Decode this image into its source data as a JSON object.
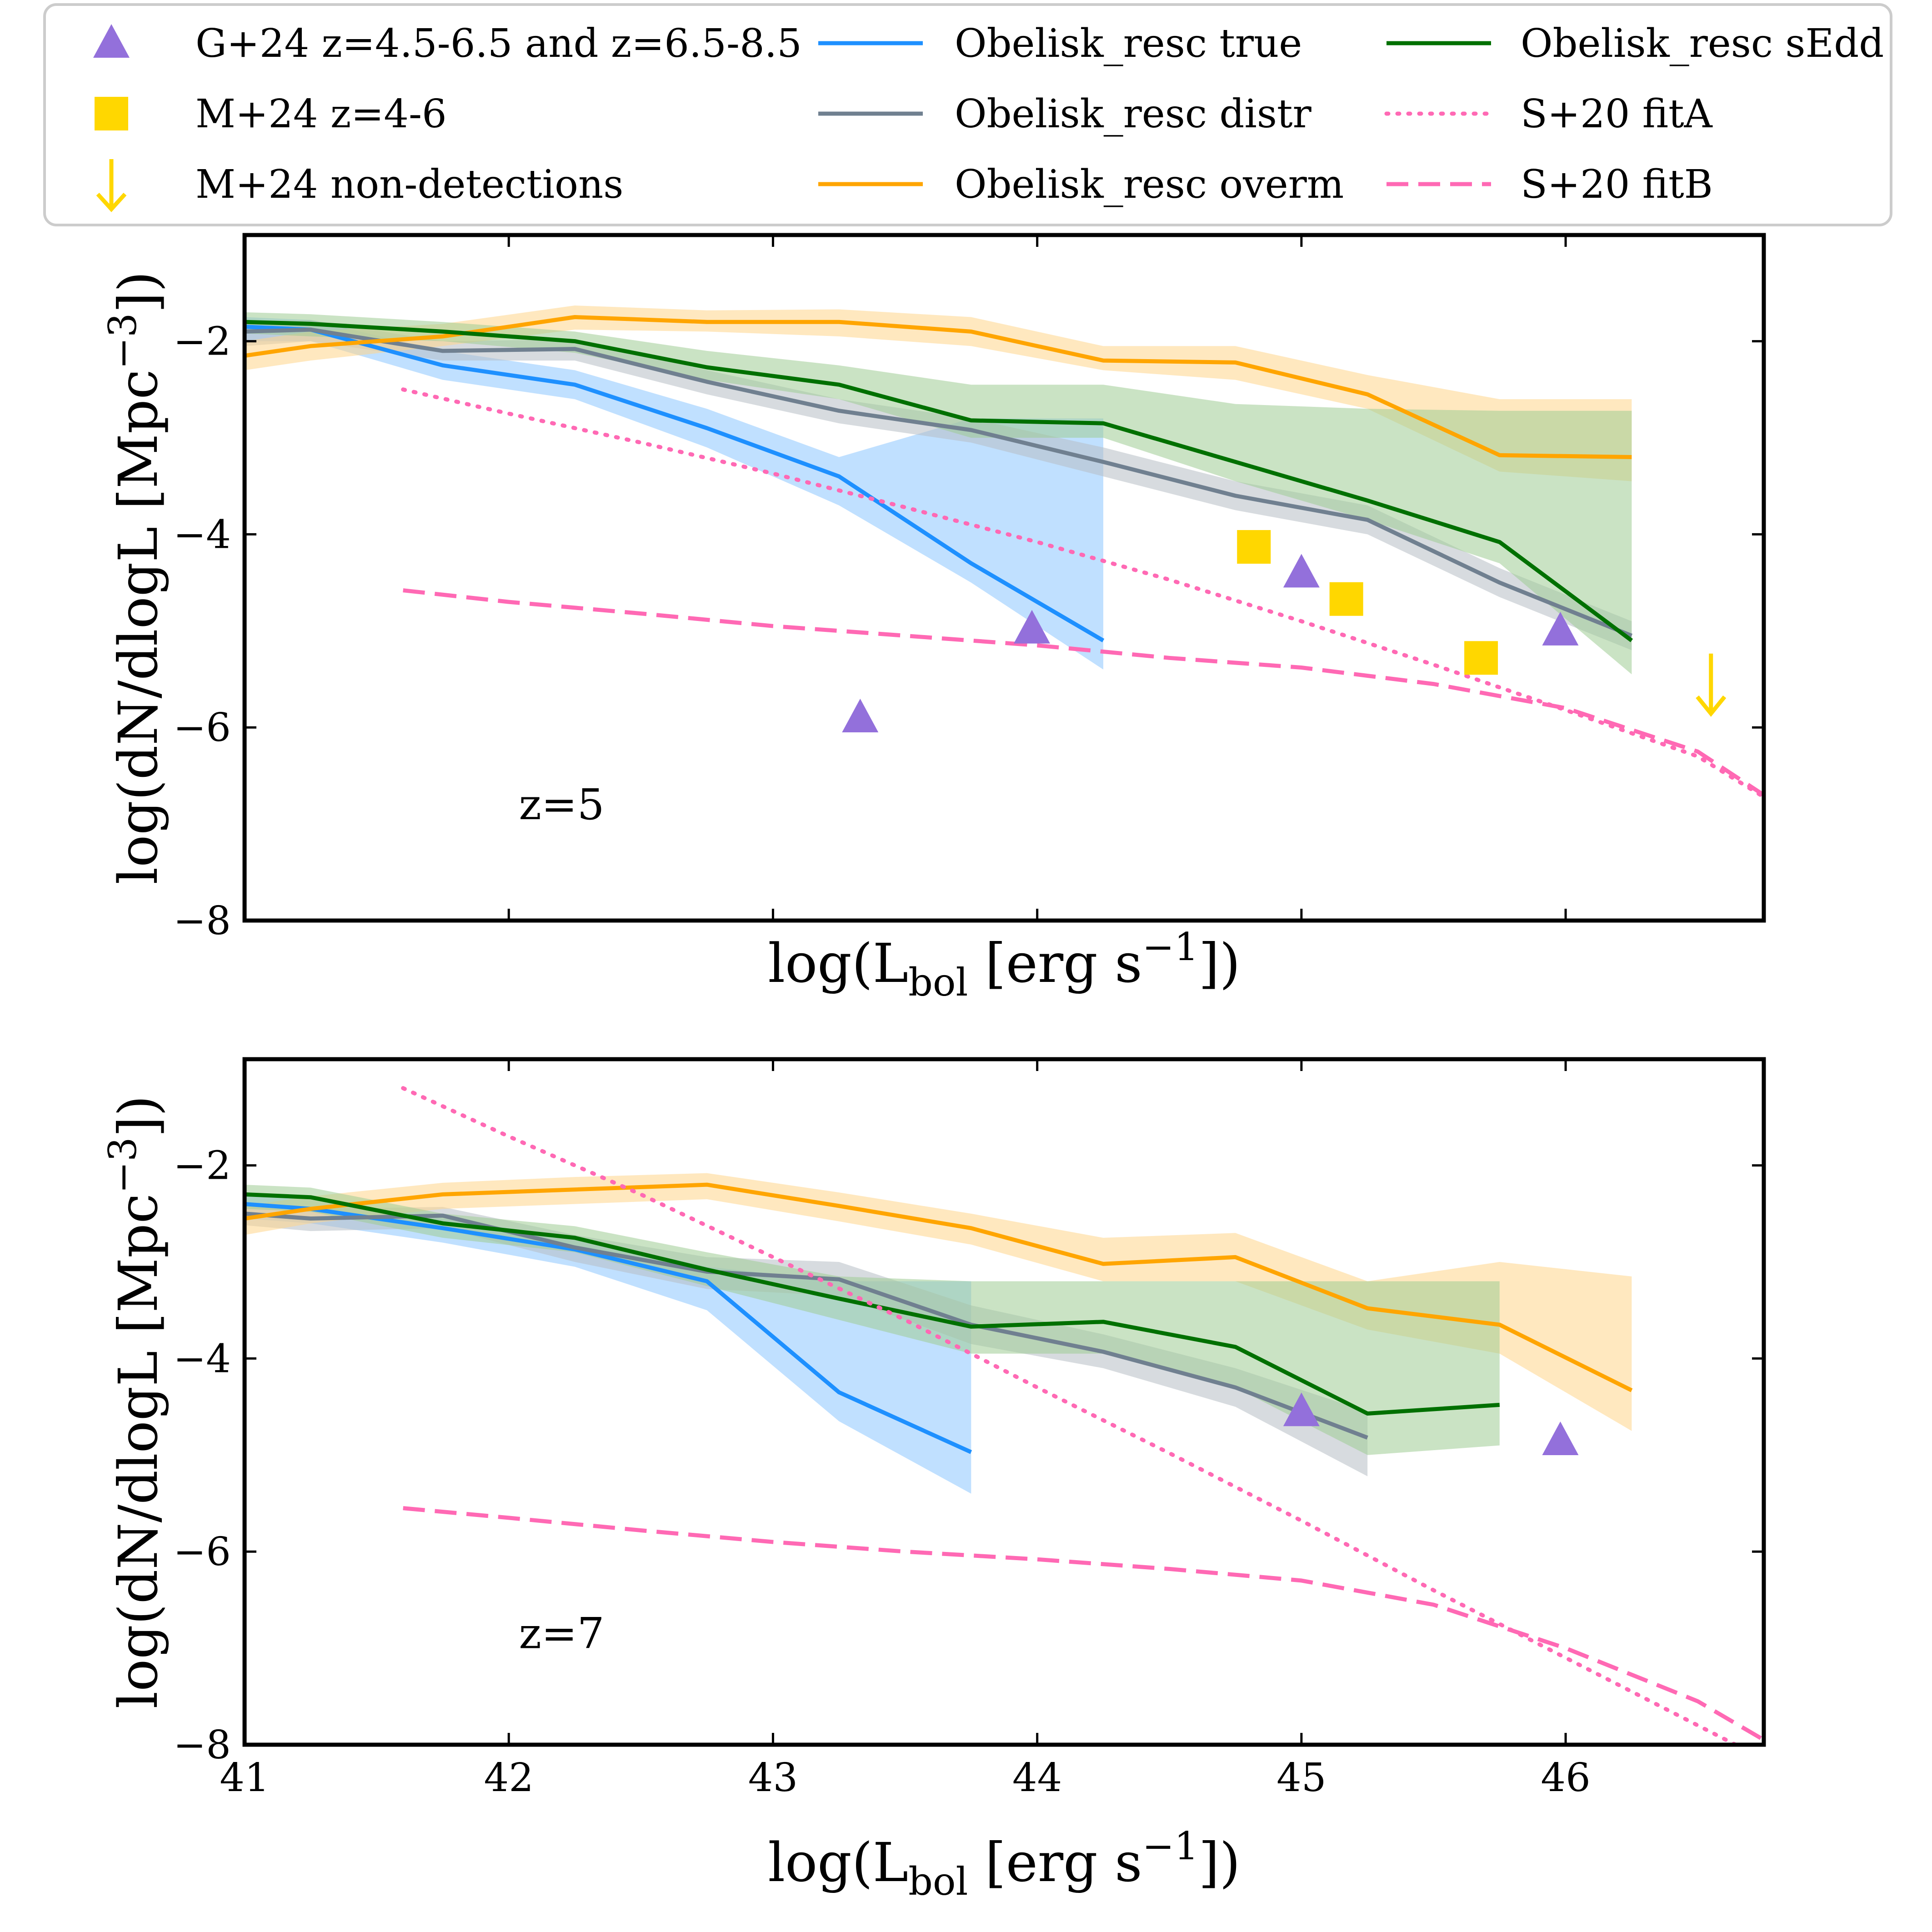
{
  "legend": {
    "entries": [
      {
        "label": "G+24 z=4.5-6.5 and z=6.5-8.5",
        "kind": "triangle",
        "color": "#9370DB"
      },
      {
        "label": "M+24 z=4-6",
        "kind": "square",
        "color": "#FFD700"
      },
      {
        "label": "M+24 non-detections",
        "kind": "arrow",
        "color": "#FFD700"
      },
      {
        "label": "Obelisk_resc true",
        "kind": "line",
        "color": "#1E90FF",
        "dash": "none"
      },
      {
        "label": "Obelisk_resc distr",
        "kind": "line",
        "color": "#708090",
        "dash": "none"
      },
      {
        "label": "Obelisk_resc overm",
        "kind": "line",
        "color": "#FFA500",
        "dash": "none"
      },
      {
        "label": "Obelisk_resc sEdd",
        "kind": "line",
        "color": "#007000",
        "dash": "none"
      },
      {
        "label": "S+20 fitA",
        "kind": "line",
        "color": "#FF69B4",
        "dash": "dotted"
      },
      {
        "label": "S+20 fitB",
        "kind": "line",
        "color": "#FF69B4",
        "dash": "dashed"
      }
    ]
  },
  "chart_data": [
    {
      "type": "line",
      "panel_label": "z=5",
      "xlabel": "log(L_bol [erg s^-1])",
      "ylabel": "log(dN/dlogL [Mpc^-3])",
      "xlim": [
        41,
        46.75
      ],
      "ylim": [
        -8,
        -0.9
      ],
      "xticks": [
        41,
        42,
        43,
        44,
        45,
        46
      ],
      "show_xtick_labels": false,
      "yticks": [
        -8,
        -6,
        -4,
        -2
      ],
      "series": [
        {
          "name": "Obelisk_resc true",
          "color": "#1E90FF",
          "band_color": "#8CC6FF",
          "x": [
            41.0,
            41.25,
            41.75,
            42.25,
            42.75,
            43.25,
            43.75,
            44.25
          ],
          "y": [
            -1.85,
            -1.88,
            -2.25,
            -2.45,
            -2.9,
            -3.4,
            -4.3,
            -5.1
          ],
          "lo": [
            -2.0,
            -2.0,
            -2.4,
            -2.6,
            -3.1,
            -3.7,
            -4.5,
            -5.4
          ],
          "hi": [
            -1.75,
            -1.78,
            -2.1,
            -2.3,
            -2.7,
            -3.2,
            -2.8,
            -2.8
          ]
        },
        {
          "name": "Obelisk_resc distr",
          "color": "#708090",
          "band_color": "#B7BEC5",
          "x": [
            41.0,
            41.25,
            41.75,
            42.25,
            42.75,
            43.25,
            43.75,
            44.25,
            44.75,
            45.25,
            45.75,
            46.25
          ],
          "y": [
            -1.9,
            -1.88,
            -2.1,
            -2.08,
            -2.42,
            -2.72,
            -2.92,
            -3.25,
            -3.6,
            -3.85,
            -4.5,
            -5.05
          ],
          "lo": [
            -2.05,
            -2.0,
            -2.2,
            -2.2,
            -2.55,
            -2.85,
            -3.05,
            -3.4,
            -3.75,
            -4.0,
            -4.65,
            -5.2
          ],
          "hi": [
            -1.8,
            -1.78,
            -2.0,
            -1.98,
            -2.3,
            -2.6,
            -2.8,
            -3.1,
            -3.45,
            -3.7,
            -4.35,
            -4.9
          ]
        },
        {
          "name": "Obelisk_resc overm",
          "color": "#FFA500",
          "band_color": "#FFD58A",
          "x": [
            41.0,
            41.25,
            41.75,
            42.25,
            42.75,
            43.25,
            43.75,
            44.25,
            44.75,
            45.25,
            45.75,
            46.25
          ],
          "y": [
            -2.15,
            -2.05,
            -1.95,
            -1.75,
            -1.8,
            -1.8,
            -1.9,
            -2.2,
            -2.22,
            -2.55,
            -3.18,
            -3.2
          ],
          "lo": [
            -2.3,
            -2.2,
            -2.05,
            -1.88,
            -1.9,
            -1.95,
            -2.05,
            -2.3,
            -2.4,
            -2.7,
            -3.35,
            -3.45
          ],
          "hi": [
            -2.0,
            -1.9,
            -1.82,
            -1.63,
            -1.68,
            -1.67,
            -1.75,
            -2.05,
            -2.05,
            -2.35,
            -2.6,
            -2.6
          ]
        },
        {
          "name": "Obelisk_resc sEdd",
          "color": "#007000",
          "band_color": "#9FCC93",
          "x": [
            41.0,
            41.25,
            41.75,
            42.25,
            42.75,
            43.25,
            43.75,
            44.25,
            44.75,
            45.25,
            45.75,
            46.25
          ],
          "y": [
            -1.8,
            -1.82,
            -1.9,
            -2.0,
            -2.27,
            -2.45,
            -2.82,
            -2.85,
            -3.25,
            -3.65,
            -4.08,
            -5.1
          ],
          "lo": [
            -1.92,
            -1.95,
            -2.0,
            -2.12,
            -2.4,
            -2.6,
            -3.0,
            -3.0,
            -3.45,
            -3.85,
            -4.3,
            -5.45
          ],
          "hi": [
            -1.7,
            -1.72,
            -1.8,
            -1.9,
            -2.1,
            -2.25,
            -2.45,
            -2.45,
            -2.65,
            -2.7,
            -2.72,
            -2.72
          ]
        },
        {
          "name": "S+20 fitA",
          "color": "#FF69B4",
          "dash": "dotted",
          "x": [
            41.6,
            42.0,
            42.5,
            43.0,
            43.5,
            44.0,
            44.5,
            45.0,
            45.5,
            46.0,
            46.5,
            46.75
          ],
          "y": [
            -2.5,
            -2.75,
            -3.05,
            -3.37,
            -3.72,
            -4.08,
            -4.47,
            -4.9,
            -5.35,
            -5.82,
            -6.3,
            -6.72
          ]
        },
        {
          "name": "S+20 fitB",
          "color": "#FF69B4",
          "dash": "dashed",
          "x": [
            41.6,
            42.0,
            42.5,
            43.0,
            43.5,
            44.0,
            44.5,
            45.0,
            45.5,
            46.0,
            46.5,
            46.75
          ],
          "y": [
            -4.58,
            -4.7,
            -4.82,
            -4.95,
            -5.05,
            -5.15,
            -5.28,
            -5.38,
            -5.55,
            -5.8,
            -6.25,
            -6.7
          ]
        }
      ],
      "triangles": {
        "x": [
          43.33,
          43.98,
          45.0,
          45.98
        ],
        "y": [
          -5.9,
          -4.98,
          -4.4,
          -5.0
        ]
      },
      "squares": {
        "x": [
          44.82,
          45.17,
          45.68
        ],
        "y": [
          -4.13,
          -4.67,
          -5.28
        ]
      },
      "upper_limits": {
        "x": [
          46.55
        ],
        "y": [
          -5.8
        ]
      }
    },
    {
      "type": "line",
      "panel_label": "z=7",
      "xlabel": "log(L_bol [erg s^-1])",
      "ylabel": "log(dN/dlogL [Mpc^-3])",
      "xlim": [
        41,
        46.75
      ],
      "ylim": [
        -8,
        -0.9
      ],
      "xticks": [
        41,
        42,
        43,
        44,
        45,
        46
      ],
      "show_xtick_labels": true,
      "yticks": [
        -8,
        -6,
        -4,
        -2
      ],
      "series": [
        {
          "name": "Obelisk_resc true",
          "color": "#1E90FF",
          "band_color": "#8CC6FF",
          "x": [
            41.0,
            41.25,
            41.75,
            42.25,
            42.75,
            43.25,
            43.75
          ],
          "y": [
            -2.4,
            -2.45,
            -2.65,
            -2.87,
            -3.2,
            -4.35,
            -4.97
          ],
          "lo": [
            -2.55,
            -2.6,
            -2.8,
            -3.05,
            -3.5,
            -4.65,
            -5.4
          ],
          "hi": [
            -2.3,
            -2.35,
            -2.55,
            -2.75,
            -3.05,
            -3.2,
            -3.2
          ]
        },
        {
          "name": "Obelisk_resc distr",
          "color": "#708090",
          "band_color": "#B7BEC5",
          "x": [
            41.0,
            41.25,
            41.75,
            42.25,
            42.75,
            43.25,
            43.75,
            44.25,
            44.75,
            45.25
          ],
          "y": [
            -2.5,
            -2.55,
            -2.52,
            -2.85,
            -3.1,
            -3.18,
            -3.65,
            -3.93,
            -4.3,
            -4.82
          ],
          "lo": [
            -2.62,
            -2.68,
            -2.65,
            -3.0,
            -3.28,
            -3.35,
            -3.85,
            -4.1,
            -4.5,
            -5.22
          ],
          "hi": [
            -2.4,
            -2.45,
            -2.43,
            -2.72,
            -2.95,
            -3.0,
            -3.45,
            -3.75,
            -4.1,
            -4.55
          ]
        },
        {
          "name": "Obelisk_resc overm",
          "color": "#FFA500",
          "band_color": "#FFD58A",
          "x": [
            41.0,
            41.25,
            41.75,
            42.25,
            42.75,
            43.25,
            43.75,
            44.25,
            44.75,
            45.25,
            45.75,
            46.25
          ],
          "y": [
            -2.55,
            -2.45,
            -2.3,
            -2.25,
            -2.2,
            -2.42,
            -2.65,
            -3.02,
            -2.95,
            -3.48,
            -3.65,
            -4.33
          ],
          "lo": [
            -2.72,
            -2.6,
            -2.45,
            -2.4,
            -2.35,
            -2.58,
            -2.82,
            -3.2,
            -3.2,
            -3.7,
            -3.95,
            -4.75
          ],
          "hi": [
            -2.42,
            -2.32,
            -2.18,
            -2.12,
            -2.08,
            -2.28,
            -2.5,
            -2.75,
            -2.7,
            -3.2,
            -3.0,
            -3.15
          ]
        },
        {
          "name": "Obelisk_resc sEdd",
          "color": "#007000",
          "band_color": "#9FCC93",
          "x": [
            41.0,
            41.25,
            41.75,
            42.25,
            42.75,
            43.25,
            43.75,
            44.25,
            44.75,
            45.25,
            45.75
          ],
          "y": [
            -2.3,
            -2.33,
            -2.6,
            -2.75,
            -3.08,
            -3.38,
            -3.67,
            -3.62,
            -3.88,
            -4.57,
            -4.48
          ],
          "lo": [
            -2.45,
            -2.48,
            -2.75,
            -2.9,
            -3.25,
            -3.6,
            -3.95,
            -3.95,
            -4.3,
            -5.0,
            -4.9
          ],
          "hi": [
            -2.2,
            -2.23,
            -2.5,
            -2.63,
            -2.9,
            -3.15,
            -3.2,
            -3.2,
            -3.2,
            -3.2,
            -3.2
          ]
        },
        {
          "name": "S+20 fitA",
          "color": "#FF69B4",
          "dash": "dotted",
          "x": [
            41.6,
            42.0,
            42.5,
            43.0,
            43.5,
            44.0,
            44.5,
            45.0,
            45.5,
            46.0,
            46.5,
            46.75
          ],
          "y": [
            -1.2,
            -1.7,
            -2.3,
            -2.95,
            -3.6,
            -4.3,
            -4.98,
            -5.68,
            -6.4,
            -7.1,
            -7.8,
            -8.15
          ]
        },
        {
          "name": "S+20 fitB",
          "color": "#FF69B4",
          "dash": "dashed",
          "x": [
            41.6,
            42.0,
            42.5,
            43.0,
            43.5,
            44.0,
            44.5,
            45.0,
            45.5,
            46.0,
            46.5,
            46.75
          ],
          "y": [
            -5.55,
            -5.65,
            -5.78,
            -5.9,
            -6.0,
            -6.08,
            -6.18,
            -6.3,
            -6.55,
            -7.0,
            -7.55,
            -7.95
          ]
        }
      ],
      "triangles": {
        "x": [
          45.0,
          45.98
        ],
        "y": [
          -4.55,
          -4.85
        ]
      },
      "squares": {
        "x": [],
        "y": []
      },
      "upper_limits": {
        "x": [],
        "y": []
      }
    }
  ]
}
